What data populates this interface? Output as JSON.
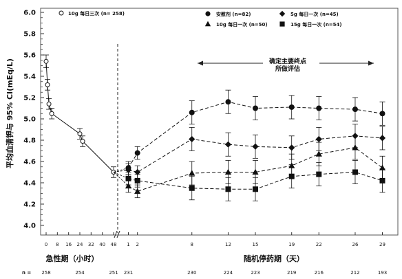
{
  "chart_data": {
    "type": "line",
    "ylabel": "平均血清钾与 95% CI(mEq/L)",
    "ylim": [
      4.0,
      6.0
    ],
    "yticks": [
      "4.0",
      "4.2",
      "4.4",
      "4.6",
      "4.8",
      "5.0",
      "5.2",
      "5.4",
      "5.6",
      "5.8",
      "6.0"
    ],
    "grid": false,
    "acute_phase": {
      "xlabel": "急性期（小时）",
      "xticks": [
        "0",
        "8",
        "16",
        "24",
        "32",
        "40",
        "48"
      ],
      "series": [
        {
          "name": "10g 每日三次 (n= 258)",
          "marker": "open-circle",
          "points": [
            {
              "x": 0,
              "y": 5.54
            },
            {
              "x": 1,
              "y": 5.32
            },
            {
              "x": 2,
              "y": 5.14
            },
            {
              "x": 4,
              "y": 5.05
            },
            {
              "x": 24,
              "y": 4.86
            },
            {
              "x": 26,
              "y": 4.79
            },
            {
              "x": 48,
              "y": 4.5
            }
          ]
        }
      ]
    },
    "maintenance_phase": {
      "xlabel": "随机停药期（天）",
      "xticks": [
        "1",
        "2",
        "8",
        "12",
        "15",
        "19",
        "22",
        "26",
        "29"
      ],
      "annotation": [
        "确定主要终点",
        "所做评估"
      ],
      "series": [
        {
          "name": "安慰剂 (n=82)",
          "marker": "filled-circle",
          "days": [
            1,
            2,
            8,
            12,
            15,
            19,
            22,
            26,
            29
          ],
          "values": [
            4.54,
            4.68,
            5.06,
            5.16,
            5.1,
            5.11,
            5.1,
            5.09,
            5.05
          ]
        },
        {
          "name": "5g 每日一次 (n=45)",
          "marker": "filled-diamond",
          "days": [
            1,
            2,
            8,
            12,
            15,
            19,
            22,
            26,
            29
          ],
          "values": [
            4.52,
            4.5,
            4.81,
            4.76,
            4.74,
            4.73,
            4.81,
            4.84,
            4.82
          ]
        },
        {
          "name": "10g 每日一次 (n=50)",
          "marker": "filled-triangle",
          "days": [
            1,
            2,
            8,
            12,
            15,
            19,
            22,
            26,
            29
          ],
          "values": [
            4.37,
            4.32,
            4.49,
            4.5,
            4.5,
            4.56,
            4.67,
            4.73,
            4.54
          ]
        },
        {
          "name": "15g 每日一次 (n=54)",
          "marker": "filled-square",
          "days": [
            1,
            2,
            8,
            12,
            15,
            19,
            22,
            26,
            29
          ],
          "values": [
            4.44,
            4.42,
            4.35,
            4.34,
            4.34,
            4.46,
            4.48,
            4.5,
            4.42
          ]
        }
      ]
    },
    "n_row": {
      "label": "n =",
      "values": [
        "258",
        "254",
        "251",
        "231",
        "230",
        "224",
        "223",
        "219",
        "216",
        "212",
        "193"
      ]
    }
  }
}
